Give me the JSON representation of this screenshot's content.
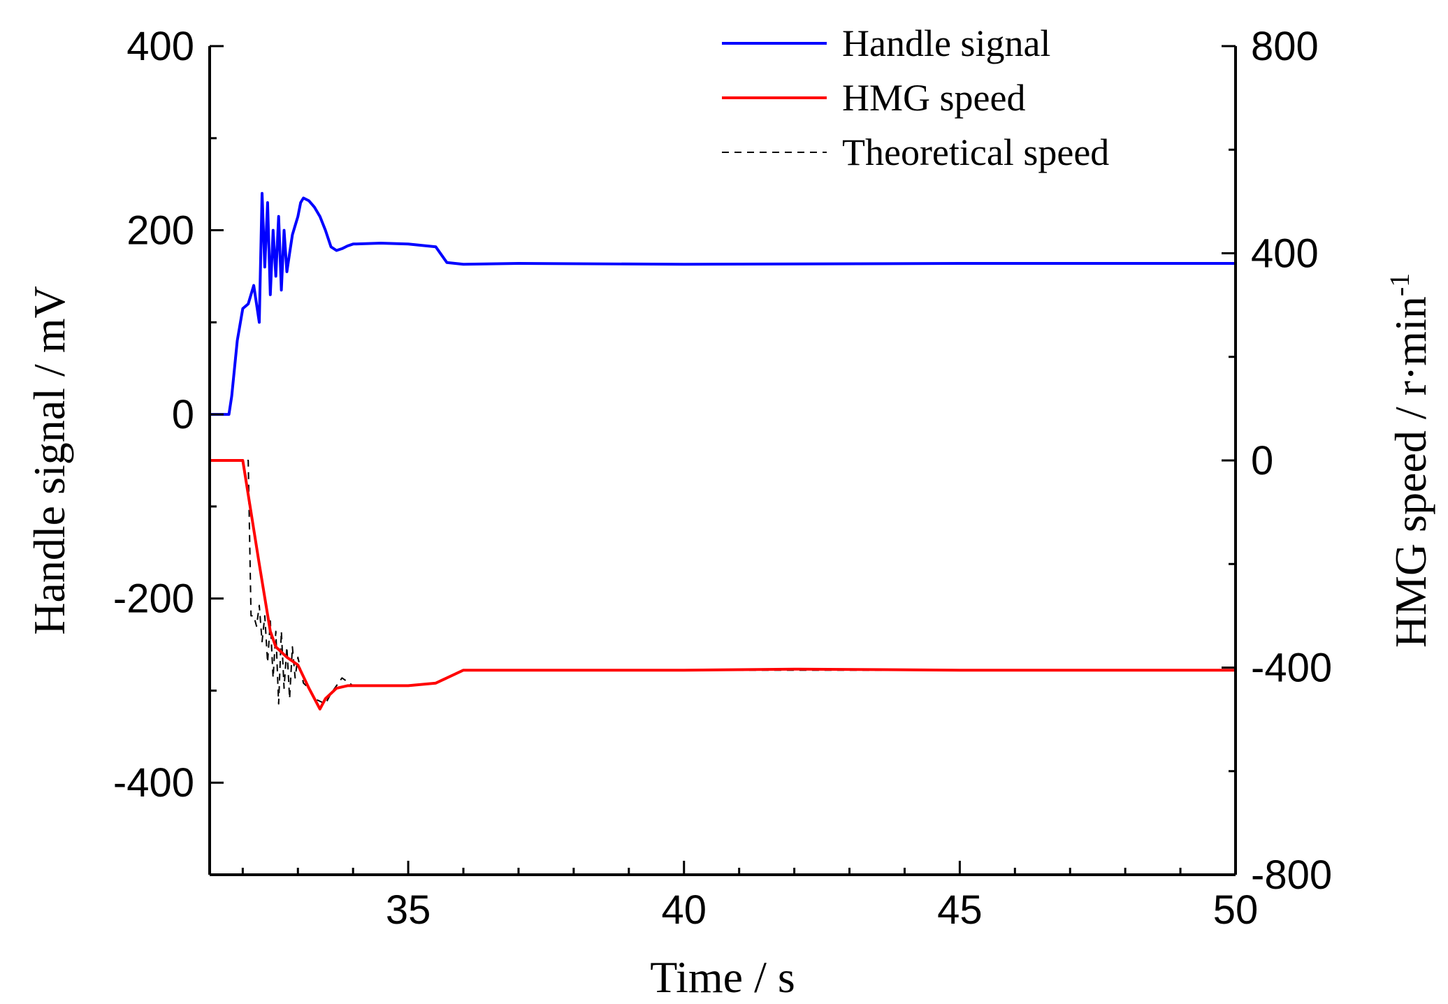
{
  "chart_data": {
    "type": "line",
    "title": "",
    "xlabel": "Time  / s",
    "ylabel_left": "Handle signal / mV",
    "ylabel_right_main": "HMG speed  / r·min",
    "ylabel_right_sup": "-1",
    "xlim": [
      31.4,
      50
    ],
    "ylim_left": [
      -500,
      400
    ],
    "ylim_right": [
      -800,
      800
    ],
    "x_ticks": [
      35,
      40,
      45,
      50
    ],
    "x_tick_labels": [
      "35",
      "40",
      "45",
      "50"
    ],
    "y_left_ticks": [
      400,
      200,
      0,
      -200,
      -400
    ],
    "y_left_tick_labels": [
      "400",
      "200",
      "0",
      "-200",
      "-400"
    ],
    "y_right_ticks": [
      800,
      400,
      0,
      -400,
      -800
    ],
    "y_right_tick_labels": [
      "800",
      "400",
      "0",
      "-400",
      "-800"
    ],
    "legend": [
      "Handle signal",
      "HMG speed",
      "Theoretical speed"
    ],
    "legend_position": "top-right",
    "colors": {
      "handle": "#0000ff",
      "hmg": "#ff0000",
      "theory": "#000000"
    },
    "series": [
      {
        "name": "Handle signal",
        "axis": "left",
        "x": [
          31.4,
          31.75,
          31.8,
          31.9,
          32.0,
          32.1,
          32.2,
          32.3,
          32.35,
          32.4,
          32.45,
          32.5,
          32.55,
          32.6,
          32.65,
          32.7,
          32.75,
          32.8,
          32.85,
          32.9,
          32.95,
          33.0,
          33.05,
          33.1,
          33.2,
          33.3,
          33.4,
          33.5,
          33.6,
          33.7,
          33.8,
          33.9,
          34.0,
          34.5,
          35.0,
          35.5,
          35.7,
          36.0,
          37.0,
          40.0,
          45.0,
          50.0
        ],
        "y": [
          0,
          0,
          20,
          80,
          115,
          120,
          140,
          100,
          240,
          160,
          230,
          130,
          200,
          150,
          215,
          135,
          200,
          155,
          175,
          195,
          205,
          215,
          230,
          235,
          232,
          225,
          215,
          200,
          182,
          178,
          180,
          183,
          185,
          186,
          185,
          182,
          165,
          163,
          164,
          163,
          164,
          164
        ]
      },
      {
        "name": "HMG speed",
        "axis": "right",
        "x": [
          31.4,
          32.0,
          32.3,
          32.5,
          32.6,
          32.8,
          33.0,
          33.2,
          33.4,
          33.5,
          33.7,
          33.9,
          34.5,
          35.0,
          35.5,
          35.7,
          36.0,
          40.0,
          42.0,
          45.0,
          50.0
        ],
        "y": [
          0,
          0,
          -200,
          -330,
          -360,
          -380,
          -395,
          -440,
          -480,
          -460,
          -440,
          -435,
          -435,
          -435,
          -430,
          -420,
          -405,
          -405,
          -403,
          -405,
          -405
        ]
      },
      {
        "name": "Theoretical speed",
        "axis": "right",
        "x": [
          31.4,
          32.1,
          32.15,
          32.2,
          32.25,
          32.3,
          32.35,
          32.4,
          32.45,
          32.5,
          32.55,
          32.6,
          32.65,
          32.7,
          32.75,
          32.8,
          32.85,
          32.9,
          32.95,
          33.0,
          33.1,
          33.2,
          33.3,
          33.5,
          33.6,
          33.8,
          34.0,
          35.0,
          35.5,
          36.0,
          40.0,
          45.0,
          50.0
        ],
        "y": [
          0,
          0,
          -300,
          -300,
          -320,
          -280,
          -350,
          -300,
          -390,
          -310,
          -420,
          -330,
          -470,
          -330,
          -440,
          -360,
          -460,
          -360,
          -420,
          -380,
          -430,
          -440,
          -460,
          -470,
          -450,
          -420,
          -435,
          -435,
          -430,
          -405,
          -405,
          -405,
          -405
        ]
      }
    ]
  }
}
